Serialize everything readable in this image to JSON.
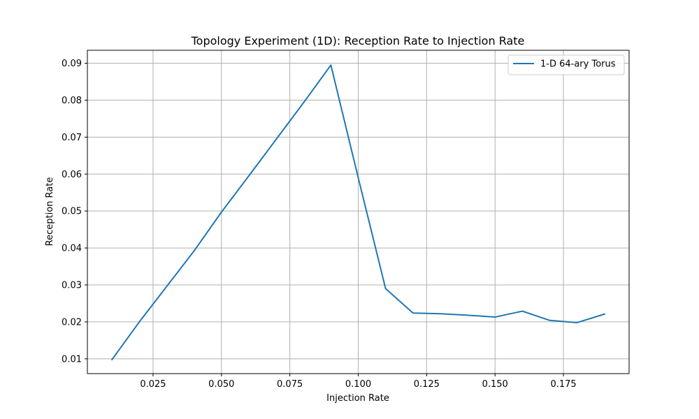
{
  "chart_data": {
    "type": "line",
    "title": "Topology Experiment (1D): Reception Rate to Injection Rate",
    "xlabel": "Injection Rate",
    "ylabel": "Reception Rate",
    "xlim": [
      0.001,
      0.199
    ],
    "ylim": [
      0.006,
      0.0935
    ],
    "xticks": [
      0.025,
      0.05,
      0.075,
      0.1,
      0.125,
      0.15,
      0.175
    ],
    "xtick_labels": [
      "0.025",
      "0.050",
      "0.075",
      "0.100",
      "0.125",
      "0.150",
      "0.175"
    ],
    "yticks": [
      0.01,
      0.02,
      0.03,
      0.04,
      0.05,
      0.06,
      0.07,
      0.08,
      0.09
    ],
    "ytick_labels": [
      "0.01",
      "0.02",
      "0.03",
      "0.04",
      "0.05",
      "0.06",
      "0.07",
      "0.08",
      "0.09"
    ],
    "grid": true,
    "legend_position": "top-right",
    "series": [
      {
        "name": "1-D 64-ary Torus",
        "color": "#1f77b4",
        "x": [
          0.01,
          0.02,
          0.03,
          0.04,
          0.05,
          0.06,
          0.07,
          0.08,
          0.09,
          0.1,
          0.11,
          0.12,
          0.13,
          0.14,
          0.15,
          0.16,
          0.17,
          0.18,
          0.19
        ],
        "y": [
          0.0098,
          0.02,
          0.0296,
          0.0392,
          0.0497,
          0.0595,
          0.0694,
          0.0793,
          0.0895,
          0.059,
          0.029,
          0.0224,
          0.0222,
          0.0218,
          0.0213,
          0.0229,
          0.0204,
          0.0198,
          0.0221
        ]
      }
    ]
  }
}
